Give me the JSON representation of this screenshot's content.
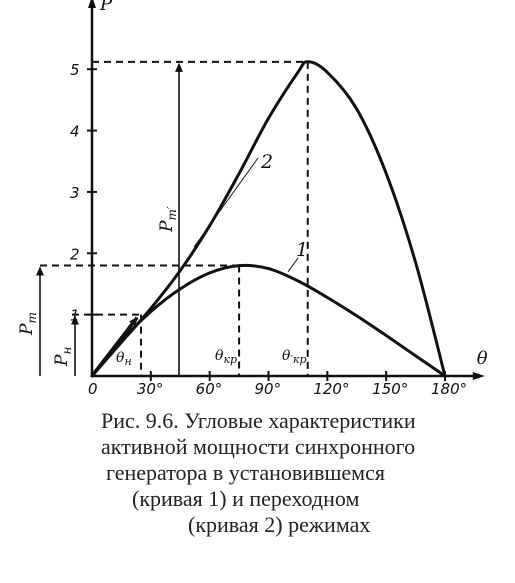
{
  "chart_data": {
    "type": "line",
    "x_unit": "°",
    "x_ticks": [
      0,
      30,
      60,
      90,
      120,
      150,
      180
    ],
    "x_tick_labels": [
      "0",
      "30°",
      "60°",
      "90°",
      "120°",
      "150°",
      "180°"
    ],
    "y_ticks": [
      1,
      2,
      3,
      4,
      5
    ],
    "y_tick_labels": [
      "1",
      "2",
      "3",
      "4",
      "5"
    ],
    "xlim": [
      0,
      185
    ],
    "ylim": [
      0,
      5.9
    ],
    "xlabel": "θ",
    "ylabel": "P",
    "series": [
      {
        "name": "1",
        "x": [
          0,
          15,
          30,
          45,
          60,
          75,
          90,
          105,
          120,
          135,
          150,
          165,
          180
        ],
        "y": [
          0,
          0.58,
          1.05,
          1.42,
          1.68,
          1.8,
          1.75,
          1.55,
          1.28,
          0.98,
          0.66,
          0.33,
          0
        ]
      },
      {
        "name": "2",
        "x": [
          0,
          15,
          30,
          45,
          60,
          75,
          90,
          105,
          110,
          120,
          135,
          150,
          165,
          180
        ],
        "y": [
          0,
          0.55,
          1.1,
          1.72,
          2.45,
          3.3,
          4.2,
          4.95,
          5.12,
          4.95,
          4.35,
          3.3,
          1.85,
          0
        ]
      }
    ],
    "reference_levels": {
      "P_n": 1.0,
      "P_m": 1.8,
      "P_m_transient": 5.12,
      "theta_n": 25,
      "theta_kr": 75,
      "theta_kr_transient": 110
    },
    "annotations": [
      "Pm",
      "Pн",
      "P′m",
      "θн",
      "θкр",
      "θ′кр"
    ]
  },
  "caption": {
    "line1": "Рис. 9.6. Угловые характеристики",
    "line2": "активной мощности синхронного",
    "line3": "генератора в установившемся",
    "line4": "(кривая 1)  и  переходном",
    "line5": "(кривая 2) режимах"
  },
  "colors": {
    "ink": "#111111",
    "text": "#222222",
    "background": "#ffffff"
  }
}
